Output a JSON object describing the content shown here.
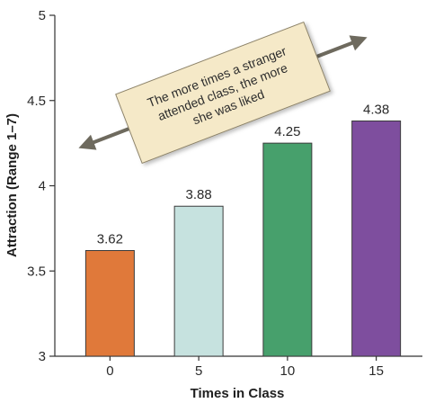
{
  "chart_data": {
    "type": "bar",
    "categories": [
      "0",
      "5",
      "10",
      "15"
    ],
    "values": [
      3.62,
      3.88,
      4.25,
      4.38
    ],
    "value_labels": [
      "3.62",
      "3.88",
      "4.25",
      "4.38"
    ],
    "bar_colors": [
      "#E0793A",
      "#C6E2DF",
      "#47A06C",
      "#7E4E9E"
    ],
    "xlabel": "Times in Class",
    "ylabel": "Attraction (Range 1–7)",
    "ylim": [
      3,
      5
    ],
    "yticks": [
      3,
      3.5,
      4,
      4.5,
      5
    ],
    "ytick_labels": [
      "3",
      "3.5",
      "4",
      "4.5",
      "5"
    ],
    "grid": false,
    "annotation": {
      "lines": [
        "The more times a stranger",
        "attended class, the more",
        "she was liked"
      ],
      "box_color": "#F5E9C8",
      "border_color": "#8C8268"
    }
  }
}
